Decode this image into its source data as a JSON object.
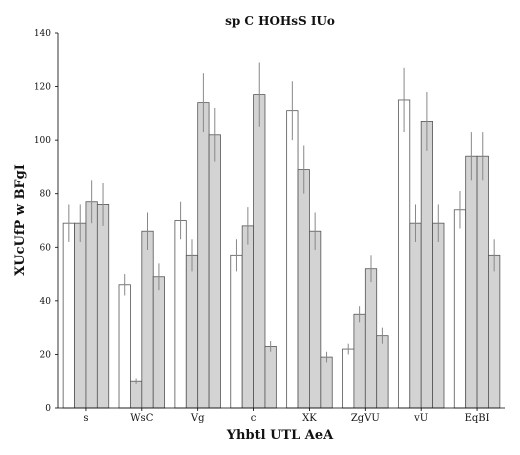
{
  "chart_data": {
    "type": "bar",
    "title": "sp C HOHsS IUo",
    "xlabel": "Yhbtl UTL AeA",
    "ylabel": "XUcUfP w BFgI",
    "ylim": [
      0,
      140
    ],
    "yticks": [
      0,
      20,
      40,
      60,
      80,
      100,
      120,
      140
    ],
    "grid": false,
    "categories": [
      "s",
      "WsC",
      "Vg",
      "c",
      "XK",
      "ZgVU",
      "vU",
      "EqBI"
    ],
    "series": [
      {
        "color": "#ffffff",
        "values": [
          69,
          46,
          70,
          57,
          111,
          22,
          115,
          74
        ],
        "errors": [
          7,
          4,
          7,
          6,
          11,
          2,
          12,
          7
        ]
      },
      {
        "color": "#d3d3d3",
        "values": [
          69,
          10,
          57,
          68,
          89,
          35,
          69,
          94
        ],
        "errors": [
          7,
          1,
          6,
          7,
          9,
          3,
          7,
          9
        ]
      },
      {
        "color": "#d3d3d3",
        "values": [
          77,
          66,
          114,
          117,
          66,
          52,
          107,
          94
        ],
        "errors": [
          8,
          7,
          11,
          12,
          7,
          5,
          11,
          9
        ]
      },
      {
        "color": "#d3d3d3",
        "values": [
          76,
          49,
          102,
          23,
          19,
          27,
          69,
          57
        ],
        "errors": [
          8,
          5,
          10,
          2,
          2,
          3,
          7,
          6
        ]
      }
    ]
  }
}
